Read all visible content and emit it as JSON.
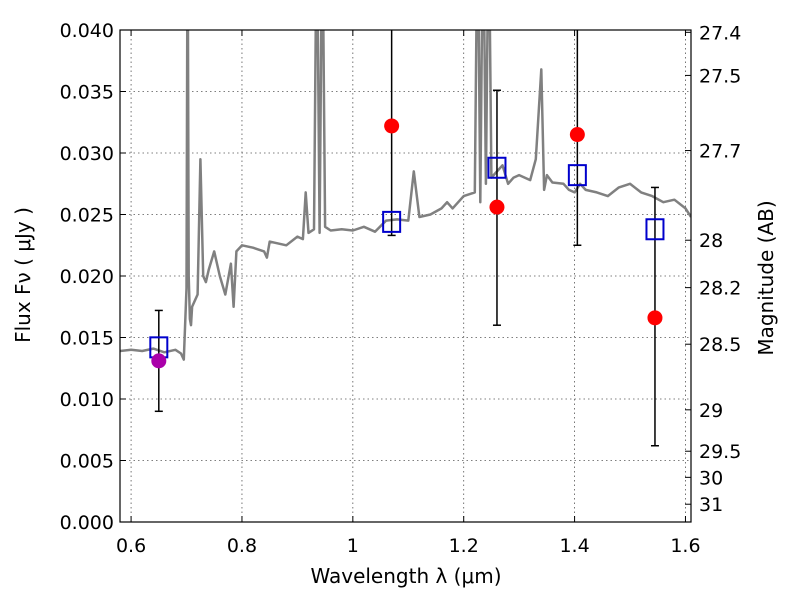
{
  "chart_data": {
    "type": "scatter",
    "title": "",
    "xlabel": "Wavelength  λ (μm)",
    "ylabel": "Flux  Fν  ( μJy )",
    "y2label": "Magnitude (AB)",
    "xlim": [
      0.58,
      1.61
    ],
    "ylim": [
      0.0,
      0.04
    ],
    "grid": true,
    "xticks": [
      0.6,
      0.8,
      1.0,
      1.2,
      1.4,
      1.6
    ],
    "xtick_labels": [
      "0.6",
      "0.8",
      "1",
      "1.2",
      "1.4",
      "1.6"
    ],
    "yticks": [
      0.0,
      0.005,
      0.01,
      0.015,
      0.02,
      0.025,
      0.03,
      0.035,
      0.04
    ],
    "ytick_labels": [
      "0.000",
      "0.005",
      "0.010",
      "0.015",
      "0.020",
      "0.025",
      "0.030",
      "0.035",
      "0.040"
    ],
    "mag_ticks": [
      27.4,
      27.5,
      27.7,
      28,
      28.2,
      28.5,
      29,
      29.5,
      30,
      31
    ],
    "mag_tick_labels": [
      "27.4",
      "27.5",
      "27.7",
      "28",
      "28.2",
      "28.5",
      "29",
      "29.5",
      "30",
      "31"
    ],
    "series": [
      {
        "kind": "line",
        "color": "#808080",
        "x": [
          0.58,
          0.6,
          0.62,
          0.64,
          0.66,
          0.68,
          0.69,
          0.695,
          0.7,
          0.702,
          0.704,
          0.706,
          0.708,
          0.71,
          0.72,
          0.725,
          0.73,
          0.735,
          0.74,
          0.75,
          0.76,
          0.77,
          0.78,
          0.785,
          0.79,
          0.8,
          0.82,
          0.84,
          0.845,
          0.85,
          0.86,
          0.88,
          0.9,
          0.91,
          0.915,
          0.92,
          0.93,
          0.935,
          0.94,
          0.945,
          0.95,
          0.96,
          0.98,
          1.0,
          1.02,
          1.04,
          1.06,
          1.08,
          1.1,
          1.11,
          1.12,
          1.14,
          1.16,
          1.17,
          1.18,
          1.2,
          1.22,
          1.225,
          1.23,
          1.235,
          1.24,
          1.245,
          1.25,
          1.26,
          1.27,
          1.28,
          1.29,
          1.3,
          1.32,
          1.33,
          1.34,
          1.345,
          1.35,
          1.36,
          1.38,
          1.39,
          1.4,
          1.41,
          1.42,
          1.44,
          1.46,
          1.48,
          1.5,
          1.52,
          1.54,
          1.56,
          1.58,
          1.6,
          1.61
        ],
        "y": [
          0.0139,
          0.014,
          0.0139,
          0.0141,
          0.0138,
          0.014,
          0.0137,
          0.0132,
          0.019,
          0.05,
          0.02,
          0.0165,
          0.016,
          0.0175,
          0.0185,
          0.0295,
          0.02,
          0.0195,
          0.0205,
          0.022,
          0.02,
          0.0185,
          0.021,
          0.0175,
          0.022,
          0.0225,
          0.0223,
          0.022,
          0.0215,
          0.0228,
          0.0227,
          0.0225,
          0.0232,
          0.023,
          0.0268,
          0.0235,
          0.0238,
          0.05,
          0.0235,
          0.05,
          0.024,
          0.0237,
          0.0238,
          0.0237,
          0.024,
          0.0236,
          0.0245,
          0.0246,
          0.0245,
          0.0285,
          0.0248,
          0.025,
          0.0255,
          0.026,
          0.0255,
          0.0265,
          0.0268,
          0.05,
          0.026,
          0.05,
          0.0275,
          0.05,
          0.028,
          0.0285,
          0.029,
          0.0275,
          0.028,
          0.0282,
          0.0278,
          0.0295,
          0.0368,
          0.027,
          0.0282,
          0.0276,
          0.0275,
          0.027,
          0.0268,
          0.0275,
          0.027,
          0.0268,
          0.0265,
          0.0272,
          0.0275,
          0.0268,
          0.0265,
          0.026,
          0.0262,
          0.0255,
          0.0248
        ]
      },
      {
        "kind": "points",
        "marker": "open-square",
        "color": "#0000cc",
        "x": [
          0.65,
          1.07,
          1.26,
          1.405,
          1.545
        ],
        "y": [
          0.0142,
          0.0244,
          0.0288,
          0.0282,
          0.0238
        ]
      },
      {
        "kind": "points",
        "marker": "filled-circle",
        "color": "#ff0000",
        "x": [
          1.07,
          1.26,
          1.405,
          1.545
        ],
        "y": [
          0.0322,
          0.0256,
          0.0315,
          0.0166
        ],
        "yerr_low": [
          0.0233,
          0.016,
          0.0225,
          0.0062
        ],
        "yerr_high": [
          0.05,
          0.0351,
          0.05,
          0.0272
        ]
      },
      {
        "kind": "points",
        "marker": "filled-circle",
        "color": "#aa00aa",
        "x": [
          0.65
        ],
        "y": [
          0.0131
        ],
        "yerr_low": [
          0.009
        ],
        "yerr_high": [
          0.0172
        ]
      }
    ]
  }
}
